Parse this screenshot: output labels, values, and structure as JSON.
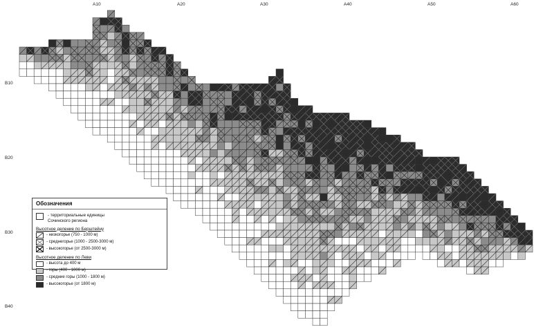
{
  "map": {
    "column_labels": [
      "A10",
      "A20",
      "A30",
      "A40",
      "A50",
      "A60"
    ],
    "row_labels": [
      "B10",
      "B20",
      "B30",
      "B40"
    ]
  },
  "legend": {
    "title": "Обозначения",
    "territorial_line1": "- территориальные единицы",
    "territorial_line2": "Сочинского региона",
    "bershtein_heading": "Высотное деление по Берштейну",
    "bershtein_items": [
      {
        "label": "- низкогорье (750 - 1000 м)",
        "pattern": "single-diagonal"
      },
      {
        "label": "- среднегорье (1000 - 2500-3000 м)",
        "pattern": "cross-light"
      },
      {
        "label": "- высокогорье (от 2500-3000 м)",
        "pattern": "cross-heavy"
      }
    ],
    "levy_heading": "Высотное деление по Леви",
    "levy_items": [
      {
        "label": "- высота до 400 м",
        "color": "#ffffff"
      },
      {
        "label": "- горы (400 - 1000 м)",
        "color": "#c8c8c8"
      },
      {
        "label": "- средние горы (1000 - 1800 м)",
        "color": "#8c8c8c"
      },
      {
        "label": "- высокогорье (от 1800 м)",
        "color": "#2b2b2b"
      }
    ]
  }
}
